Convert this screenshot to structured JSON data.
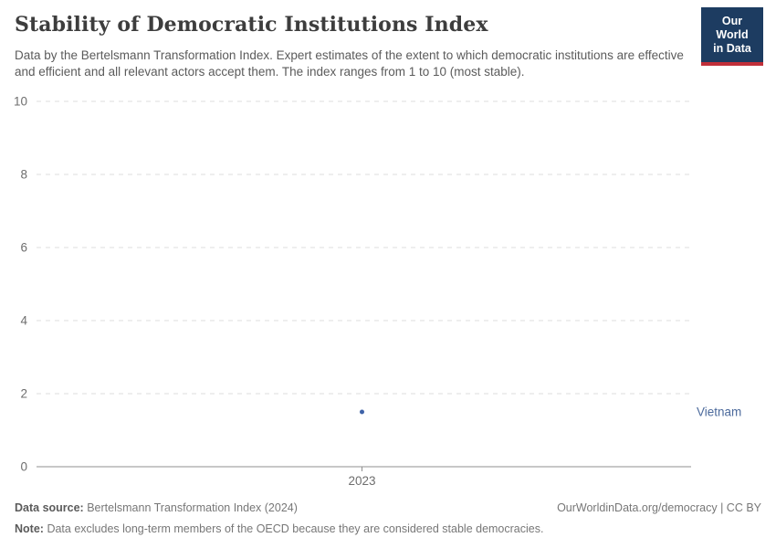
{
  "header": {
    "title": "Stability of Democratic Institutions Index",
    "subtitle": "Data by the Bertelsmann Transformation Index. Expert estimates of the extent to which democratic institutions are effective and efficient and all relevant actors accept them. The index ranges from 1 to 10 (most stable)."
  },
  "logo": {
    "line1": "Our World",
    "line2": "in Data",
    "background_color": "#1d3c61",
    "stripe_color": "#c12f39"
  },
  "chart_data": {
    "type": "scatter",
    "title": "Stability of Democratic Institutions Index",
    "xlabel": "",
    "ylabel": "",
    "x_ticks": [
      2023
    ],
    "y_ticks": [
      0,
      2,
      4,
      6,
      8,
      10
    ],
    "ylim": [
      0,
      10
    ],
    "grid": "horizontal-dashed",
    "series": [
      {
        "name": "Vietnam",
        "x": [
          2023
        ],
        "y": [
          1.5
        ],
        "color": "#3f63a8",
        "label_color": "#4c6a9c"
      }
    ]
  },
  "footer": {
    "data_source_label": "Data source:",
    "data_source_value": "Bertelsmann Transformation Index (2024)",
    "link": "OurWorldinData.org/democracy | CC BY",
    "note_label": "Note:",
    "note_value": "Data excludes long-term members of the OECD because they are considered stable democracies."
  },
  "colors": {
    "accent_blue": "#3f63a8",
    "gridline": "#dcdcdc",
    "axis_line": "#8f8f8f",
    "tick_text": "#6e6e6e"
  }
}
